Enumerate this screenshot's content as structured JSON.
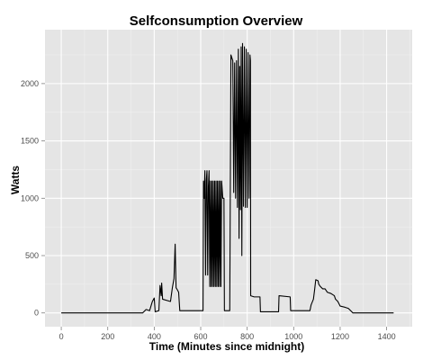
{
  "chart_data": {
    "type": "line",
    "title": "Selfconsumption Overview",
    "xlabel": "Time (Minutes since midnight)",
    "ylabel": "Watts",
    "xlim": [
      -70,
      1510
    ],
    "ylim": [
      -120,
      2470
    ],
    "x_ticks": [
      0,
      200,
      400,
      600,
      800,
      1000,
      1200,
      1400
    ],
    "y_ticks": [
      0,
      500,
      1000,
      1500,
      2000
    ],
    "grid": true,
    "legend": "none",
    "colors": {
      "panel": "#e5e5e5",
      "grid": "#ffffff",
      "line": "#000000"
    },
    "points": [
      [
        0,
        0
      ],
      [
        350,
        0
      ],
      [
        365,
        30
      ],
      [
        380,
        20
      ],
      [
        392,
        100
      ],
      [
        400,
        130
      ],
      [
        404,
        10
      ],
      [
        420,
        20
      ],
      [
        425,
        240
      ],
      [
        430,
        150
      ],
      [
        432,
        260
      ],
      [
        436,
        120
      ],
      [
        470,
        100
      ],
      [
        478,
        220
      ],
      [
        485,
        300
      ],
      [
        490,
        600
      ],
      [
        494,
        220
      ],
      [
        500,
        200
      ],
      [
        505,
        180
      ],
      [
        510,
        20
      ],
      [
        610,
        20
      ],
      [
        612,
        1150
      ],
      [
        615,
        1000
      ],
      [
        618,
        1240
      ],
      [
        621,
        330
      ],
      [
        624,
        1150
      ],
      [
        627,
        1240
      ],
      [
        630,
        330
      ],
      [
        633,
        1100
      ],
      [
        636,
        1240
      ],
      [
        639,
        230
      ],
      [
        642,
        1150
      ],
      [
        645,
        230
      ],
      [
        648,
        1150
      ],
      [
        651,
        230
      ],
      [
        654,
        1150
      ],
      [
        657,
        230
      ],
      [
        660,
        1150
      ],
      [
        663,
        230
      ],
      [
        666,
        1150
      ],
      [
        669,
        230
      ],
      [
        672,
        1150
      ],
      [
        675,
        230
      ],
      [
        678,
        1150
      ],
      [
        681,
        230
      ],
      [
        684,
        1150
      ],
      [
        687,
        230
      ],
      [
        690,
        1150
      ],
      [
        695,
        1000
      ],
      [
        700,
        1000
      ],
      [
        702,
        20
      ],
      [
        725,
        20
      ],
      [
        730,
        2250
      ],
      [
        738,
        2200
      ],
      [
        742,
        1050
      ],
      [
        746,
        2180
      ],
      [
        750,
        1000
      ],
      [
        754,
        2200
      ],
      [
        758,
        920
      ],
      [
        762,
        2300
      ],
      [
        765,
        650
      ],
      [
        768,
        2150
      ],
      [
        771,
        900
      ],
      [
        774,
        2320
      ],
      [
        777,
        500
      ],
      [
        780,
        2350
      ],
      [
        784,
        930
      ],
      [
        788,
        2320
      ],
      [
        792,
        920
      ],
      [
        796,
        2300
      ],
      [
        800,
        920
      ],
      [
        804,
        2270
      ],
      [
        808,
        1000
      ],
      [
        812,
        2250
      ],
      [
        814,
        2200
      ],
      [
        815,
        150
      ],
      [
        830,
        140
      ],
      [
        855,
        140
      ],
      [
        857,
        10
      ],
      [
        935,
        10
      ],
      [
        937,
        150
      ],
      [
        985,
        140
      ],
      [
        987,
        20
      ],
      [
        1070,
        20
      ],
      [
        1075,
        70
      ],
      [
        1085,
        120
      ],
      [
        1090,
        200
      ],
      [
        1095,
        290
      ],
      [
        1105,
        280
      ],
      [
        1108,
        250
      ],
      [
        1115,
        230
      ],
      [
        1125,
        210
      ],
      [
        1135,
        210
      ],
      [
        1145,
        180
      ],
      [
        1160,
        170
      ],
      [
        1175,
        150
      ],
      [
        1180,
        120
      ],
      [
        1190,
        100
      ],
      [
        1195,
        80
      ],
      [
        1200,
        60
      ],
      [
        1220,
        50
      ],
      [
        1235,
        40
      ],
      [
        1245,
        20
      ],
      [
        1255,
        0
      ],
      [
        1430,
        0
      ]
    ]
  }
}
